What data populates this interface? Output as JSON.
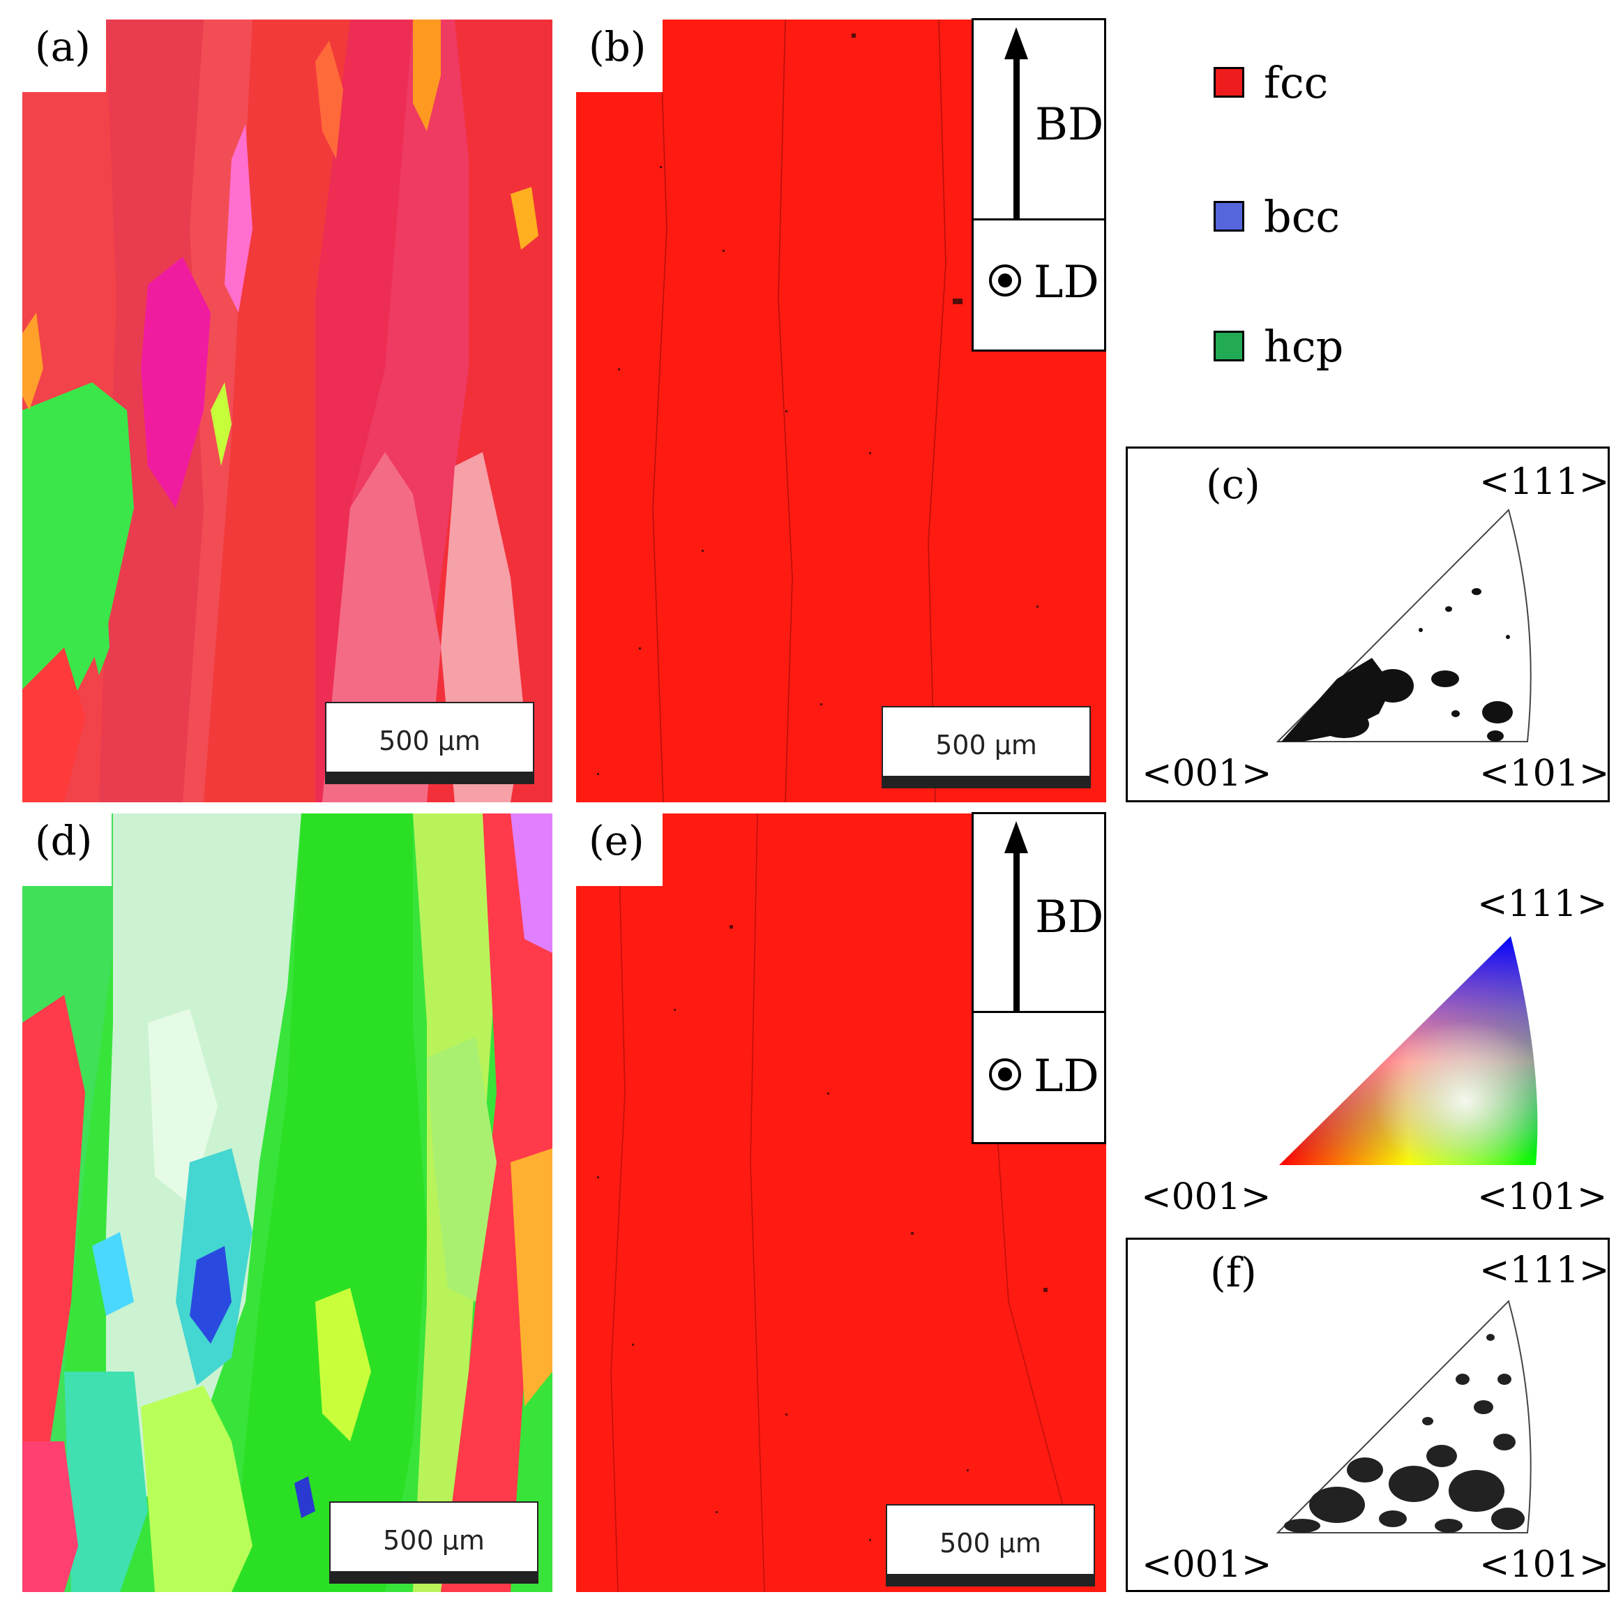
{
  "panels": {
    "a": {
      "label": "(a)",
      "scale_bar": "500 µm"
    },
    "b": {
      "label": "(b)",
      "scale_bar": "500 µm"
    },
    "c": {
      "label": "(c)"
    },
    "d": {
      "label": "(d)",
      "scale_bar": "500 µm"
    },
    "e": {
      "label": "(e)",
      "scale_bar": "500 µm"
    },
    "f": {
      "label": "(f)"
    }
  },
  "axes": {
    "build_direction": "BD",
    "laser_direction": "LD"
  },
  "legend": [
    {
      "label": "fcc",
      "color": "#ee1c1c"
    },
    {
      "label": "bcc",
      "color": "#5566dd"
    },
    {
      "label": "hcp",
      "color": "#22aa55"
    }
  ],
  "ipf": {
    "corner_001": "<001>",
    "corner_101": "<101>",
    "corner_111": "<111>"
  },
  "colors": {
    "phase_map_red": "#ff1a12"
  }
}
